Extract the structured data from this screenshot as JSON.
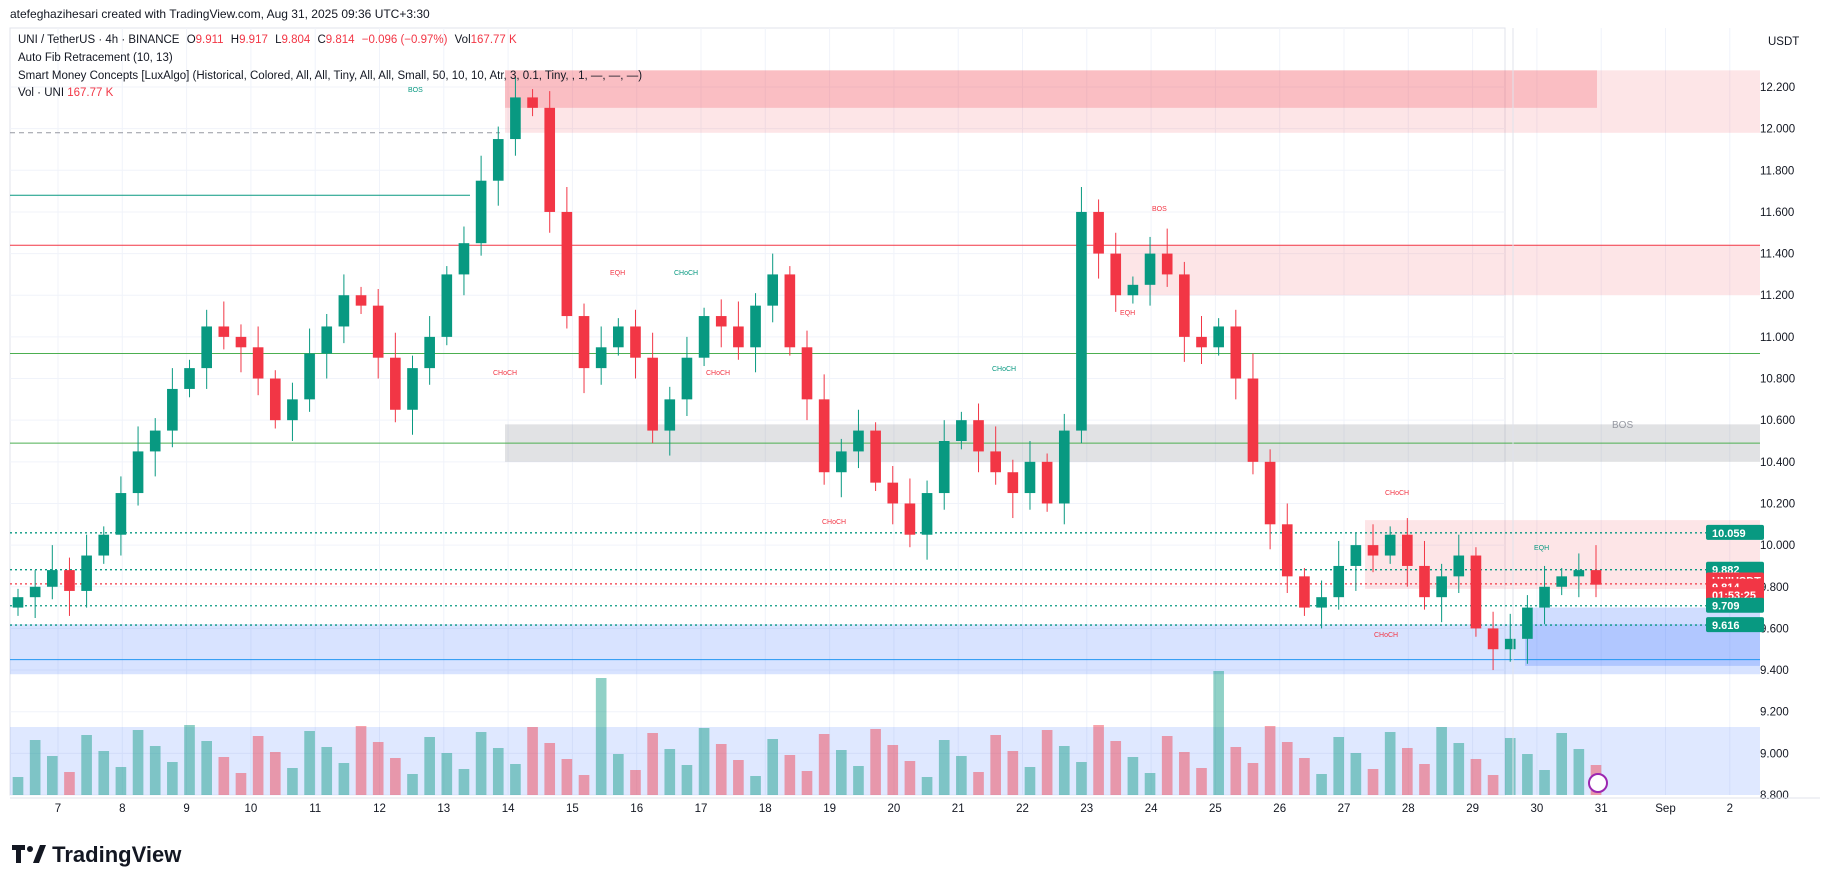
{
  "header": {
    "author_line": "atefeghazihesari created with TradingView.com, Aug 31, 2025 09:36 UTC+3:30"
  },
  "legend": {
    "symbol": "UNI / TetherUS · 4h · BINANCE",
    "o_label": "O",
    "o_value": "9.911",
    "h_label": "H",
    "h_value": "9.917",
    "l_label": "L",
    "l_value": "9.804",
    "c_label": "C",
    "c_value": "9.814",
    "change": "−0.096 (−0.97%)",
    "vol_label": "Vol",
    "vol_value": "167.77 K",
    "indicator1": "Auto Fib Retracement (10, 13)",
    "indicator2": "Smart Money Concepts [LuxAlgo] (Historical, Colored, All, All, Tiny, All, All, Small, 50, 10, 10, Atr, 3, 0.1, Tiny, , 1, —, —, —)",
    "indicator3_label": "Vol · UNI",
    "indicator3_value": "167.77 K"
  },
  "axis": {
    "currency": "USDT",
    "ticks": [
      "12.200",
      "12.000",
      "11.800",
      "11.600",
      "11.400",
      "11.200",
      "11.000",
      "10.800",
      "10.600",
      "10.400",
      "10.200",
      "10.000",
      "9.800",
      "9.600",
      "9.400",
      "9.200",
      "9.000",
      "8.800"
    ],
    "x_ticks": [
      "7",
      "8",
      "9",
      "10",
      "11",
      "12",
      "13",
      "14",
      "15",
      "16",
      "17",
      "18",
      "19",
      "20",
      "21",
      "22",
      "23",
      "24",
      "25",
      "26",
      "27",
      "28",
      "29",
      "30",
      "31",
      "Sep",
      "2"
    ]
  },
  "price_tags": [
    {
      "value": "10.059",
      "color": "#089981"
    },
    {
      "value": "9.882",
      "color": "#089981"
    },
    {
      "value": "UNIUSDT",
      "color": "#f23645"
    },
    {
      "value": "9.814",
      "color": "#f23645"
    },
    {
      "value": "01:53:25",
      "color": "#f23645"
    },
    {
      "value": "9.709",
      "color": "#089981"
    },
    {
      "value": "9.616",
      "color": "#089981"
    }
  ],
  "annotations": [
    "BOS",
    "EQH",
    "CHoCH",
    "CHoCH",
    "CHoCH",
    "CHoCH",
    "CHoCH",
    "BOS",
    "EQH",
    "CHoCH",
    "EQH",
    "CHoCH",
    "BOS",
    "Equilibrium"
  ],
  "brand": "TradingView",
  "chart_data": {
    "type": "candlestick",
    "timeframe": "4h",
    "x_labels": [
      "7",
      "8",
      "9",
      "10",
      "11",
      "12",
      "13",
      "14",
      "15",
      "16",
      "17",
      "18",
      "19",
      "20",
      "21",
      "22",
      "23",
      "24",
      "25",
      "26",
      "27",
      "28",
      "29",
      "30",
      "31",
      "Sep",
      "2"
    ],
    "ylim": [
      8.8,
      12.3
    ],
    "close_path": [
      9.75,
      9.8,
      9.88,
      9.78,
      9.95,
      10.05,
      10.25,
      10.45,
      10.55,
      10.75,
      10.85,
      11.05,
      11.0,
      10.95,
      10.8,
      10.6,
      10.7,
      10.92,
      11.05,
      11.2,
      11.15,
      10.9,
      10.65,
      10.85,
      11.0,
      11.3,
      11.45,
      11.75,
      11.95,
      12.15,
      12.1,
      11.6,
      11.1,
      10.85,
      10.95,
      11.05,
      10.9,
      10.55,
      10.7,
      10.9,
      11.1,
      11.05,
      10.95,
      11.15,
      11.3,
      10.95,
      10.7,
      10.35,
      10.45,
      10.55,
      10.3,
      10.2,
      10.05,
      10.25,
      10.5,
      10.6,
      10.45,
      10.35,
      10.25,
      10.4,
      10.2,
      10.55,
      11.6,
      11.4,
      11.2,
      11.25,
      11.4,
      11.3,
      11.0,
      10.95,
      11.05,
      10.8,
      10.4,
      10.1,
      9.85,
      9.7,
      9.75,
      9.9,
      10.0,
      9.95,
      10.05,
      9.9,
      9.75,
      9.85,
      9.95,
      9.6,
      9.5,
      9.55,
      9.7,
      9.8,
      9.85,
      9.88,
      9.81
    ],
    "key_levels": {
      "10.059": "#089981",
      "9.882": "#089981",
      "9.814": "#f23645",
      "9.709": "#089981",
      "9.616": "#089981"
    },
    "zones": {
      "supply_top": [
        12.28,
        11.98
      ],
      "supply_mid": [
        11.44,
        11.2
      ],
      "equilibrium": [
        10.58,
        10.4
      ],
      "supply_low": [
        10.12,
        9.79
      ],
      "demand": [
        9.62,
        9.38
      ]
    },
    "volume_last": "167.77 K"
  }
}
